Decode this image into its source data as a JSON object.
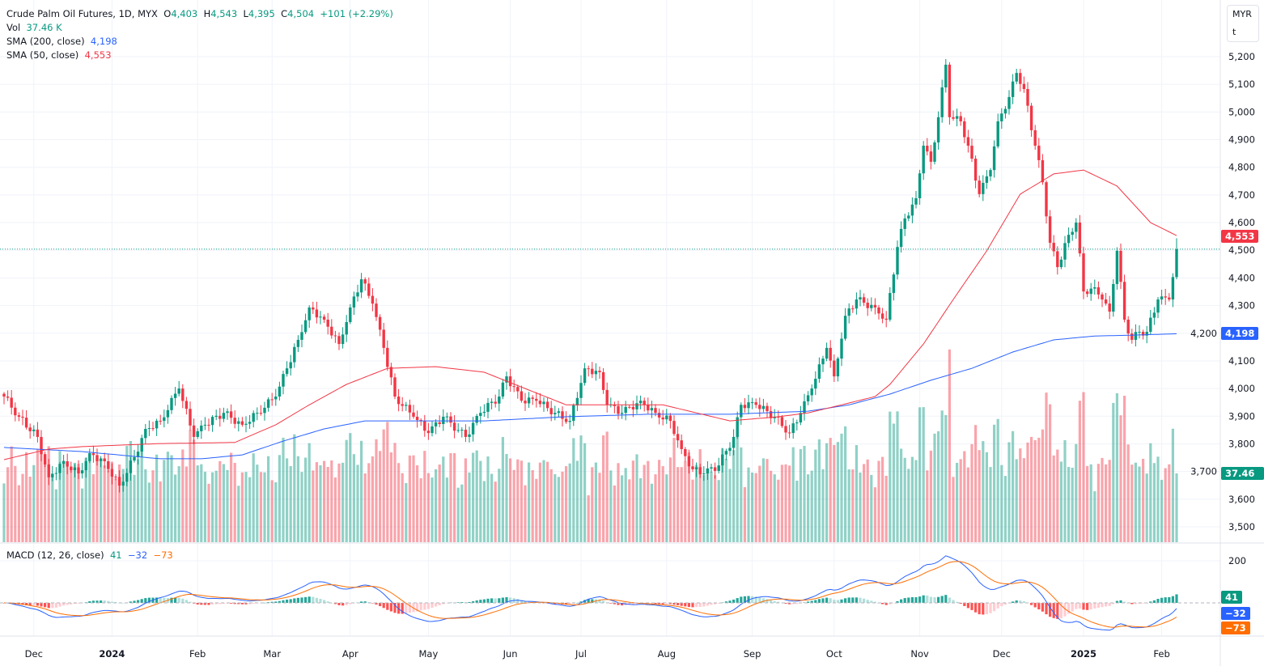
{
  "header": {
    "symbol": "Crude Palm Oil Futures, 1D, MYX",
    "o_label": "O",
    "open": "4,403",
    "h_label": "H",
    "high": "4,543",
    "l_label": "L",
    "low": "4,395",
    "c_label": "C",
    "close": "4,504",
    "change": "+101 (+2.29%)",
    "vol_label": "Vol",
    "vol": "37.46 K",
    "sma200_label": "SMA (200, close)",
    "sma200": "4,198",
    "sma50_label": "SMA (50, close)",
    "sma50": "4,553"
  },
  "currency": {
    "line1": "MYR",
    "line2": "t"
  },
  "macd_legend": {
    "label": "MACD (12, 26, close)",
    "hist": "41",
    "macd": "−32",
    "signal": "−73"
  },
  "axis_tags": {
    "sma50": "4,553",
    "sma200": "4,198",
    "volume": "37.46 K",
    "hist": "41",
    "macd": "−32",
    "signal": "−73"
  },
  "colors": {
    "up": "#089981",
    "down": "#f23645",
    "sma200": "#2962ff",
    "sma50": "#f23645",
    "macd": "#2962ff",
    "signal": "#ff6d00"
  },
  "chart_data": {
    "type": "candlestick",
    "title": "Crude Palm Oil Futures, 1D, MYX",
    "ylim": [
      3450,
      5230
    ],
    "y_ticks": [
      5200,
      5100,
      5000,
      4900,
      4800,
      4700,
      4600,
      4500,
      4400,
      4300,
      4200,
      4100,
      4000,
      3900,
      3800,
      3700,
      3600,
      3500
    ],
    "y_tick_labels": [
      "5,200",
      "5,100",
      "5,000",
      "4,900",
      "4,800",
      "4,700",
      "4,600",
      "4,500",
      "4,400",
      "4,300",
      "4,200",
      "4,100",
      "4,000",
      "3,900",
      "3,800",
      "3,700",
      "3,600",
      "3,500"
    ],
    "total_bars": 316,
    "x_ticks": [
      {
        "bar": 8,
        "label": "Dec",
        "bold": false
      },
      {
        "bar": 29,
        "label": "2024",
        "bold": true
      },
      {
        "bar": 52,
        "label": "Feb",
        "bold": false
      },
      {
        "bar": 72,
        "label": "Mar",
        "bold": false
      },
      {
        "bar": 93,
        "label": "Apr",
        "bold": false
      },
      {
        "bar": 114,
        "label": "May",
        "bold": false
      },
      {
        "bar": 136,
        "label": "Jun",
        "bold": false
      },
      {
        "bar": 155,
        "label": "Jul",
        "bold": false
      },
      {
        "bar": 178,
        "label": "Aug",
        "bold": false
      },
      {
        "bar": 201,
        "label": "Sep",
        "bold": false
      },
      {
        "bar": 223,
        "label": "Oct",
        "bold": false
      },
      {
        "bar": 246,
        "label": "Nov",
        "bold": false
      },
      {
        "bar": 268,
        "label": "Dec",
        "bold": false
      },
      {
        "bar": 290,
        "label": "2025",
        "bold": true
      },
      {
        "bar": 311,
        "label": "Feb",
        "bold": false
      }
    ],
    "close_keypoints": [
      [
        0,
        3971
      ],
      [
        4,
        3898
      ],
      [
        9,
        3825
      ],
      [
        12,
        3679
      ],
      [
        16,
        3737
      ],
      [
        20,
        3693
      ],
      [
        23,
        3766
      ],
      [
        27,
        3737
      ],
      [
        31,
        3649
      ],
      [
        35,
        3752
      ],
      [
        38,
        3854
      ],
      [
        42,
        3883
      ],
      [
        47,
        4000
      ],
      [
        51,
        3825
      ],
      [
        54,
        3869
      ],
      [
        59,
        3912
      ],
      [
        64,
        3869
      ],
      [
        68,
        3912
      ],
      [
        73,
        3971
      ],
      [
        76,
        4073
      ],
      [
        79,
        4176
      ],
      [
        82,
        4293
      ],
      [
        86,
        4249
      ],
      [
        90,
        4161
      ],
      [
        93,
        4293
      ],
      [
        96,
        4395
      ],
      [
        99,
        4307
      ],
      [
        102,
        4147
      ],
      [
        105,
        3971
      ],
      [
        110,
        3898
      ],
      [
        114,
        3839
      ],
      [
        118,
        3898
      ],
      [
        124,
        3825
      ],
      [
        128,
        3912
      ],
      [
        133,
        3971
      ],
      [
        135,
        4044
      ],
      [
        139,
        3956
      ],
      [
        143,
        3956
      ],
      [
        148,
        3912
      ],
      [
        152,
        3883
      ],
      [
        156,
        4073
      ],
      [
        160,
        4059
      ],
      [
        162,
        3941
      ],
      [
        166,
        3912
      ],
      [
        171,
        3956
      ],
      [
        175,
        3912
      ],
      [
        179,
        3883
      ],
      [
        182,
        3781
      ],
      [
        185,
        3708
      ],
      [
        188,
        3693
      ],
      [
        192,
        3722
      ],
      [
        196,
        3825
      ],
      [
        198,
        3941
      ],
      [
        202,
        3941
      ],
      [
        207,
        3898
      ],
      [
        211,
        3839
      ],
      [
        214,
        3912
      ],
      [
        217,
        4000
      ],
      [
        221,
        4147
      ],
      [
        223,
        4044
      ],
      [
        226,
        4263
      ],
      [
        229,
        4322
      ],
      [
        234,
        4293
      ],
      [
        237,
        4249
      ],
      [
        240,
        4512
      ],
      [
        242,
        4615
      ],
      [
        245,
        4688
      ],
      [
        247,
        4878
      ],
      [
        249,
        4820
      ],
      [
        251,
        4981
      ],
      [
        253,
        5171
      ],
      [
        254,
        4981
      ],
      [
        257,
        4966
      ],
      [
        259,
        4878
      ],
      [
        262,
        4703
      ],
      [
        265,
        4790
      ],
      [
        267,
        4966
      ],
      [
        270,
        5054
      ],
      [
        272,
        5141
      ],
      [
        274,
        5083
      ],
      [
        277,
        4878
      ],
      [
        279,
        4746
      ],
      [
        281,
        4527
      ],
      [
        283,
        4439
      ],
      [
        286,
        4556
      ],
      [
        288,
        4600
      ],
      [
        290,
        4351
      ],
      [
        293,
        4366
      ],
      [
        295,
        4322
      ],
      [
        297,
        4278
      ],
      [
        299,
        4498
      ],
      [
        301,
        4249
      ],
      [
        303,
        4176
      ],
      [
        305,
        4205
      ],
      [
        307,
        4205
      ],
      [
        310,
        4322
      ],
      [
        313,
        4322
      ],
      [
        314,
        4403
      ],
      [
        315,
        4504
      ]
    ],
    "last_bar": {
      "open": 4403,
      "high": 4543,
      "low": 4395,
      "close": 4504,
      "volume_k": 37.46
    },
    "sma200_keypoints": [
      [
        0,
        3787
      ],
      [
        21,
        3772
      ],
      [
        42,
        3746
      ],
      [
        53,
        3746
      ],
      [
        64,
        3760
      ],
      [
        75,
        3810
      ],
      [
        86,
        3854
      ],
      [
        97,
        3883
      ],
      [
        108,
        3883
      ],
      [
        129,
        3883
      ],
      [
        151,
        3898
      ],
      [
        173,
        3907
      ],
      [
        195,
        3907
      ],
      [
        216,
        3918
      ],
      [
        227,
        3941
      ],
      [
        238,
        3980
      ],
      [
        249,
        4030
      ],
      [
        260,
        4073
      ],
      [
        271,
        4132
      ],
      [
        282,
        4176
      ],
      [
        293,
        4190
      ],
      [
        303,
        4193
      ],
      [
        315,
        4198
      ]
    ],
    "sma50_keypoints": [
      [
        0,
        3743
      ],
      [
        12,
        3781
      ],
      [
        21,
        3790
      ],
      [
        42,
        3801
      ],
      [
        62,
        3805
      ],
      [
        73,
        3869
      ],
      [
        82,
        3941
      ],
      [
        92,
        4015
      ],
      [
        103,
        4073
      ],
      [
        116,
        4079
      ],
      [
        129,
        4059
      ],
      [
        140,
        4000
      ],
      [
        151,
        3941
      ],
      [
        164,
        3941
      ],
      [
        177,
        3941
      ],
      [
        186,
        3912
      ],
      [
        195,
        3883
      ],
      [
        208,
        3898
      ],
      [
        216,
        3912
      ],
      [
        225,
        3941
      ],
      [
        234,
        3971
      ],
      [
        238,
        4015
      ],
      [
        247,
        4161
      ],
      [
        255,
        4322
      ],
      [
        264,
        4498
      ],
      [
        273,
        4703
      ],
      [
        282,
        4776
      ],
      [
        290,
        4790
      ],
      [
        299,
        4732
      ],
      [
        308,
        4600
      ],
      [
        315,
        4553
      ]
    ],
    "macd": {
      "fast": 12,
      "slow": 26,
      "signal": 9,
      "y_tick": 200,
      "y_tick_label": "200",
      "last_hist": 41,
      "last_macd": -32,
      "last_signal": -73
    }
  }
}
